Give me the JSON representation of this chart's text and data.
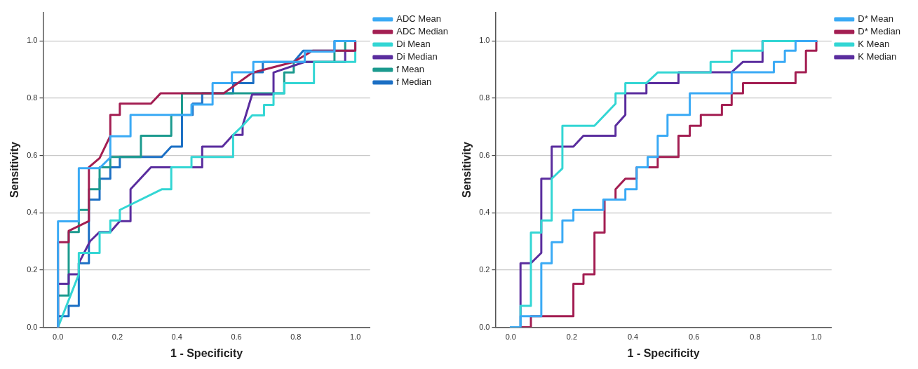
{
  "chart_data": [
    {
      "type": "line",
      "xlabel": "1 - Specificity",
      "ylabel": "Sensitivity",
      "xlim": [
        -0.05,
        1.05
      ],
      "ylim": [
        0,
        1.1
      ],
      "xticks": [
        {
          "value": 0,
          "label": "0.0"
        },
        {
          "value": 0.2,
          "label": "0.2"
        },
        {
          "value": 0.4,
          "label": "0.4"
        },
        {
          "value": 0.6,
          "label": "0.6"
        },
        {
          "value": 0.8,
          "label": "0.8"
        },
        {
          "value": 1,
          "label": "1.0"
        }
      ],
      "yticks": [
        {
          "value": 0,
          "label": "0.0"
        },
        {
          "value": 0.2,
          "label": "0.2"
        },
        {
          "value": 0.4,
          "label": "0.4"
        },
        {
          "value": 0.6,
          "label": "0.6"
        },
        {
          "value": 0.8,
          "label": "0.8"
        },
        {
          "value": 1,
          "label": "1.0"
        }
      ],
      "grid": "y",
      "legend": "right",
      "marker": "none",
      "line_style": "solid",
      "series": [
        {
          "name": "ADC Mean",
          "color": "#3aaaf5",
          "x": [
            0,
            0,
            0.07,
            0.07,
            0.14,
            0.176,
            0.176,
            0.244,
            0.244,
            0.449,
            0.449,
            0.52,
            0.52,
            0.585,
            0.585,
            0.657,
            0.657,
            0.83,
            0.83,
            0.93,
            0.93,
            1
          ],
          "values": [
            0,
            0.37,
            0.37,
            0.556,
            0.556,
            0.593,
            0.667,
            0.667,
            0.742,
            0.742,
            0.778,
            0.778,
            0.853,
            0.853,
            0.891,
            0.891,
            0.927,
            0.927,
            0.963,
            0.963,
            1,
            1
          ]
        },
        {
          "name": "ADC Median",
          "color": "#a31e52",
          "x": [
            0,
            0,
            0.036,
            0.036,
            0.104,
            0.104,
            0.14,
            0.176,
            0.176,
            0.208,
            0.208,
            0.3125,
            0.345,
            0.557,
            0.653,
            0.793,
            0.857,
            1,
            1
          ],
          "values": [
            0,
            0.297,
            0.297,
            0.337,
            0.371,
            0.559,
            0.591,
            0.669,
            0.742,
            0.742,
            0.781,
            0.781,
            0.817,
            0.817,
            0.889,
            0.927,
            0.966,
            0.966,
            1
          ]
        },
        {
          "name": "Di Mean",
          "color": "#33d6d4",
          "x": [
            0,
            0.07,
            0.07,
            0.14,
            0.14,
            0.176,
            0.176,
            0.208,
            0.208,
            0.349,
            0.381,
            0.381,
            0.449,
            0.449,
            0.589,
            0.589,
            0.621,
            0.653,
            0.693,
            0.693,
            0.725,
            0.725,
            0.761,
            0.761,
            0.861,
            0.861,
            1,
            1
          ],
          "values": [
            0,
            0.185,
            0.26,
            0.26,
            0.331,
            0.331,
            0.373,
            0.373,
            0.41,
            0.482,
            0.482,
            0.559,
            0.559,
            0.595,
            0.595,
            0.672,
            0.704,
            0.74,
            0.74,
            0.777,
            0.777,
            0.817,
            0.817,
            0.853,
            0.853,
            0.927,
            0.927,
            1
          ]
        },
        {
          "name": "Di Median",
          "color": "#5a2d9e",
          "x": [
            0,
            0,
            0.036,
            0.036,
            0.07,
            0.07,
            0.108,
            0.14,
            0.176,
            0.208,
            0.244,
            0.244,
            0.3125,
            0.485,
            0.485,
            0.553,
            0.589,
            0.621,
            0.621,
            0.653,
            0.725,
            0.725,
            0.83,
            0.966,
            0.966,
            1,
            1
          ],
          "values": [
            0,
            0.152,
            0.152,
            0.185,
            0.185,
            0.224,
            0.301,
            0.333,
            0.333,
            0.371,
            0.371,
            0.482,
            0.559,
            0.559,
            0.631,
            0.631,
            0.672,
            0.672,
            0.704,
            0.813,
            0.813,
            0.89,
            0.927,
            0.927,
            0.966,
            0.966,
            1
          ]
        },
        {
          "name": "f Mean",
          "color": "#1b9a8e",
          "x": [
            0,
            0,
            0.036,
            0.036,
            0.07,
            0.07,
            0.104,
            0.104,
            0.14,
            0.14,
            0.176,
            0.176,
            0.279,
            0.279,
            0.381,
            0.381,
            0.417,
            0.417,
            0.761,
            0.761,
            0.793,
            0.793,
            0.93,
            0.93,
            0.966,
            0.966,
            1
          ],
          "values": [
            0,
            0.111,
            0.111,
            0.333,
            0.333,
            0.41,
            0.41,
            0.482,
            0.482,
            0.559,
            0.559,
            0.595,
            0.595,
            0.669,
            0.669,
            0.742,
            0.742,
            0.817,
            0.817,
            0.89,
            0.89,
            0.927,
            0.927,
            0.966,
            0.966,
            1,
            1
          ]
        },
        {
          "name": "f Median",
          "color": "#1b6fc4",
          "x": [
            0,
            0,
            0.036,
            0.036,
            0.07,
            0.07,
            0.104,
            0.104,
            0.14,
            0.14,
            0.176,
            0.176,
            0.208,
            0.208,
            0.349,
            0.381,
            0.417,
            0.417,
            0.453,
            0.453,
            0.485,
            0.485,
            0.589,
            0.589,
            0.657,
            0.657,
            0.689,
            0.689,
            0.793,
            0.825,
            0.93,
            0.93,
            1
          ],
          "values": [
            0,
            0.039,
            0.039,
            0.075,
            0.075,
            0.224,
            0.224,
            0.446,
            0.446,
            0.519,
            0.519,
            0.559,
            0.559,
            0.595,
            0.595,
            0.631,
            0.631,
            0.742,
            0.742,
            0.781,
            0.781,
            0.817,
            0.817,
            0.853,
            0.853,
            0.891,
            0.891,
            0.927,
            0.927,
            0.966,
            0.966,
            1,
            1
          ]
        }
      ]
    },
    {
      "type": "line",
      "xlabel": "1 - Specificity",
      "ylabel": "Sensitivity",
      "xlim": [
        -0.05,
        1.05
      ],
      "ylim": [
        0,
        1.1
      ],
      "xticks": [
        {
          "value": 0,
          "label": "0.0"
        },
        {
          "value": 0.2,
          "label": "0.2"
        },
        {
          "value": 0.4,
          "label": "0.4"
        },
        {
          "value": 0.6,
          "label": "0.6"
        },
        {
          "value": 0.8,
          "label": "0.8"
        },
        {
          "value": 1,
          "label": "1.0"
        }
      ],
      "yticks": [
        {
          "value": 0,
          "label": "0.0"
        },
        {
          "value": 0.2,
          "label": "0.2"
        },
        {
          "value": 0.4,
          "label": "0.4"
        },
        {
          "value": 0.6,
          "label": "0.6"
        },
        {
          "value": 0.8,
          "label": "0.8"
        },
        {
          "value": 1,
          "label": "1.0"
        }
      ],
      "grid": "y",
      "legend": "right",
      "marker": "none",
      "line_style": "solid",
      "series": [
        {
          "name": "D* Mean",
          "color": "#3aaaf5",
          "x": [
            0,
            0.032,
            0.032,
            0.1,
            0.1,
            0.134,
            0.134,
            0.169,
            0.169,
            0.205,
            0.205,
            0.303,
            0.303,
            0.375,
            0.375,
            0.412,
            0.412,
            0.448,
            0.448,
            0.481,
            0.481,
            0.513,
            0.513,
            0.586,
            0.586,
            0.723,
            0.723,
            0.861,
            0.861,
            0.897,
            0.897,
            0.932,
            0.932,
            1
          ],
          "values": [
            0,
            0,
            0.039,
            0.039,
            0.224,
            0.224,
            0.297,
            0.297,
            0.373,
            0.373,
            0.41,
            0.41,
            0.446,
            0.446,
            0.482,
            0.482,
            0.559,
            0.559,
            0.595,
            0.595,
            0.669,
            0.669,
            0.742,
            0.742,
            0.817,
            0.817,
            0.891,
            0.891,
            0.927,
            0.927,
            0.966,
            0.966,
            1,
            1
          ]
        },
        {
          "name": "D* Median",
          "color": "#a31e52",
          "x": [
            0.032,
            0.066,
            0.066,
            0.205,
            0.205,
            0.238,
            0.238,
            0.274,
            0.274,
            0.307,
            0.307,
            0.343,
            0.343,
            0.375,
            0.412,
            0.412,
            0.481,
            0.481,
            0.549,
            0.549,
            0.586,
            0.586,
            0.622,
            0.622,
            0.691,
            0.691,
            0.723,
            0.723,
            0.76,
            0.76,
            0.932,
            0.932,
            0.966,
            0.966,
            1,
            1
          ],
          "values": [
            0,
            0,
            0.039,
            0.039,
            0.152,
            0.152,
            0.185,
            0.185,
            0.331,
            0.331,
            0.446,
            0.446,
            0.482,
            0.519,
            0.519,
            0.559,
            0.559,
            0.595,
            0.595,
            0.669,
            0.669,
            0.704,
            0.704,
            0.742,
            0.742,
            0.777,
            0.777,
            0.817,
            0.817,
            0.853,
            0.853,
            0.891,
            0.891,
            0.966,
            0.966,
            1
          ]
        },
        {
          "name": "K Mean",
          "color": "#33d6d4",
          "x": [
            0,
            0.032,
            0.032,
            0.066,
            0.066,
            0.1,
            0.1,
            0.134,
            0.134,
            0.169,
            0.169,
            0.274,
            0.343,
            0.343,
            0.375,
            0.375,
            0.444,
            0.481,
            0.549,
            0.654,
            0.654,
            0.723,
            0.723,
            0.824,
            0.824,
            1
          ],
          "values": [
            0,
            0,
            0.075,
            0.075,
            0.331,
            0.331,
            0.373,
            0.373,
            0.519,
            0.555,
            0.704,
            0.704,
            0.781,
            0.817,
            0.817,
            0.853,
            0.853,
            0.89,
            0.89,
            0.89,
            0.927,
            0.927,
            0.966,
            0.966,
            1,
            1
          ]
        },
        {
          "name": "K Median",
          "color": "#5a2d9e",
          "x": [
            0,
            0.032,
            0.032,
            0.066,
            0.1,
            0.1,
            0.134,
            0.134,
            0.205,
            0.238,
            0.343,
            0.343,
            0.375,
            0.375,
            0.444,
            0.444,
            0.549,
            0.549,
            0.723,
            0.76,
            0.824,
            0.824,
            1
          ],
          "values": [
            0,
            0,
            0.224,
            0.224,
            0.26,
            0.519,
            0.519,
            0.631,
            0.631,
            0.669,
            0.669,
            0.704,
            0.742,
            0.817,
            0.817,
            0.853,
            0.853,
            0.891,
            0.891,
            0.927,
            0.927,
            1,
            1
          ]
        }
      ]
    }
  ]
}
